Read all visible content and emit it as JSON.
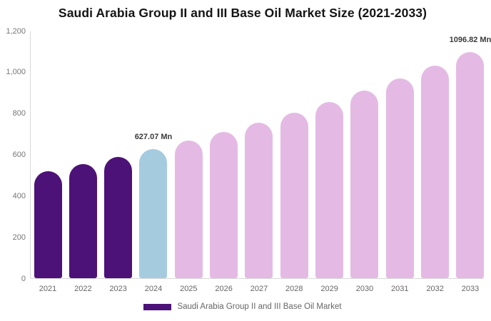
{
  "title": "Saudi Arabia Group II and III Base Oil Market Size (2021-2033)",
  "colors": {
    "historical_bar": "#4C1277",
    "current_bar": "#A5CBDF",
    "forecast_bar": "#E4BAE4",
    "axis_line": "#D9D9D9",
    "tick_text": "#757575",
    "annotation_text": "#3A3A3A",
    "legend_text": "#666666",
    "title_text": "#141414"
  },
  "chart_data": {
    "type": "bar",
    "title": "Saudi Arabia Group II and III Base Oil Market Size (2021-2033)",
    "xlabel": "",
    "ylabel": "",
    "unit": "Mn",
    "categories": [
      "2021",
      "2022",
      "2023",
      "2024",
      "2025",
      "2026",
      "2027",
      "2028",
      "2029",
      "2030",
      "2031",
      "2032",
      "2033"
    ],
    "values": [
      520.4,
      553.8,
      589.3,
      627.07,
      667.3,
      710.0,
      755.5,
      804.0,
      855.5,
      910.3,
      968.7,
      1030.7,
      1096.82
    ],
    "bar_colors": [
      "#4C1277",
      "#4C1277",
      "#4C1277",
      "#A5CBDF",
      "#E4BAE4",
      "#E4BAE4",
      "#E4BAE4",
      "#E4BAE4",
      "#E4BAE4",
      "#E4BAE4",
      "#E4BAE4",
      "#E4BAE4",
      "#E4BAE4"
    ],
    "annotations": [
      {
        "index": 3,
        "text": "627.07 Mn"
      },
      {
        "index": 12,
        "text": "1096.82 Mn"
      }
    ],
    "ylim": [
      0,
      1200
    ],
    "ytick_labels": [
      "0",
      "200",
      "400",
      "600",
      "800",
      "1,000",
      "1,200"
    ],
    "grid": false,
    "legend_position": "bottom",
    "legend": [
      {
        "label": "Saudi Arabia Group II and III Base Oil Market",
        "color": "#4C1277"
      }
    ]
  }
}
